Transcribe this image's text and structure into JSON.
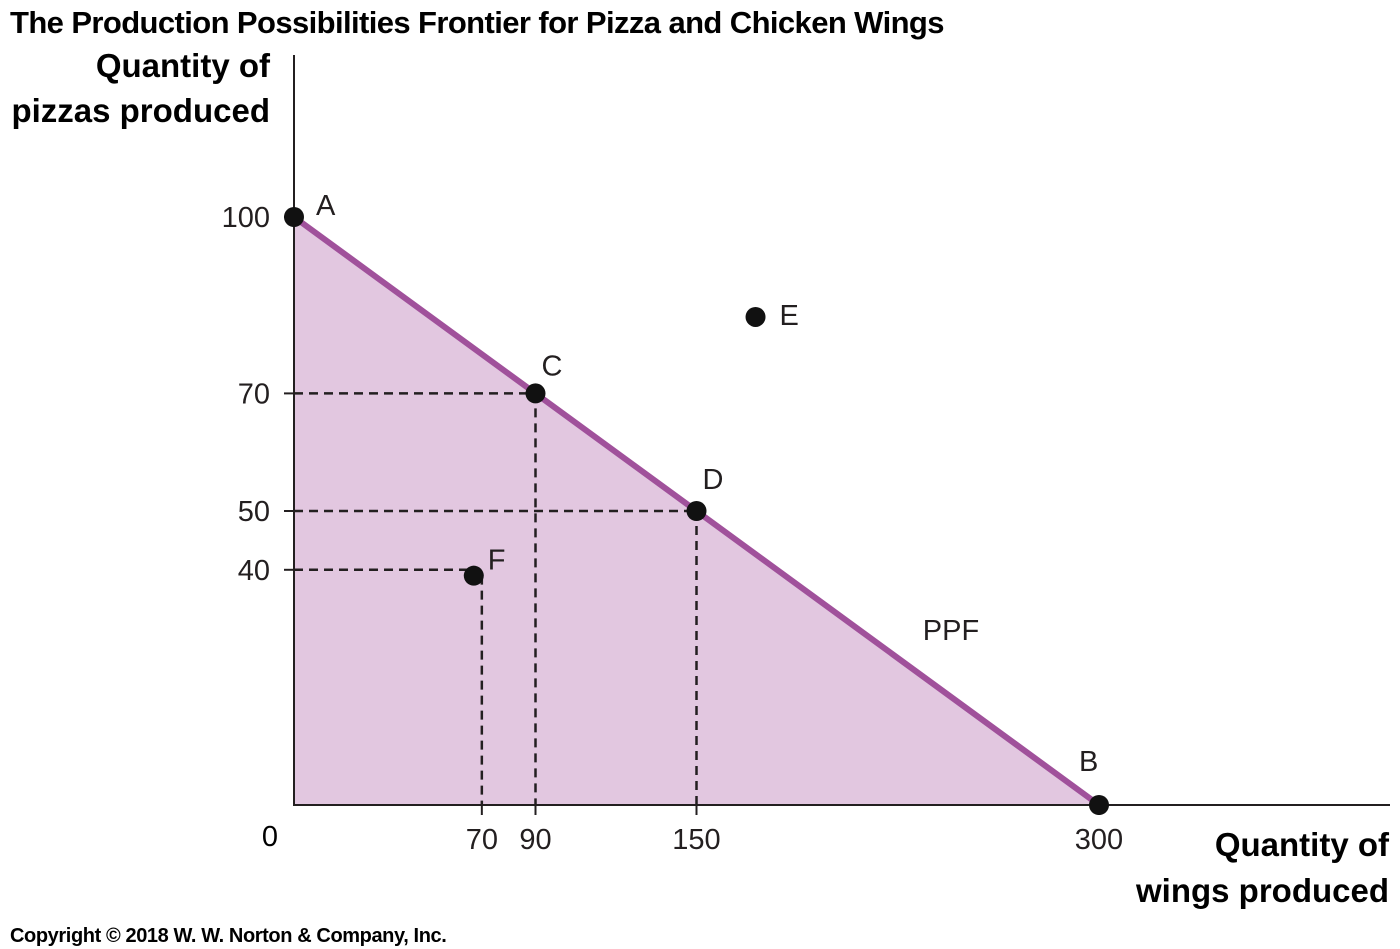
{
  "chart_data": {
    "type": "line",
    "title": "The Production Possibilities Frontier for Pizza and Chicken Wings",
    "xlabel": [
      "Quantity of",
      "wings produced"
    ],
    "ylabel": [
      "Quantity of",
      "pizzas produced"
    ],
    "origin_label": "0",
    "xlim": [
      0,
      300
    ],
    "ylim": [
      0,
      100
    ],
    "x_ticks": [
      70,
      90,
      150,
      300
    ],
    "y_ticks": [
      40,
      50,
      70,
      100
    ],
    "curve_label": "PPF",
    "ppf": [
      [
        0,
        100
      ],
      [
        300,
        0
      ]
    ],
    "points": [
      {
        "label": "A",
        "x": 0,
        "y": 100
      },
      {
        "label": "B",
        "x": 300,
        "y": 0
      },
      {
        "label": "C",
        "x": 90,
        "y": 70
      },
      {
        "label": "D",
        "x": 150,
        "y": 50
      },
      {
        "label": "E",
        "x": 172,
        "y": 83
      },
      {
        "label": "F",
        "x": 67,
        "y": 39
      }
    ],
    "colors": {
      "ppf_line": "#a0519b",
      "fill": "#e2c7e0",
      "axis": "#231f20"
    }
  },
  "copyright": "Copyright © 2018 W. W. Norton & Company, Inc."
}
